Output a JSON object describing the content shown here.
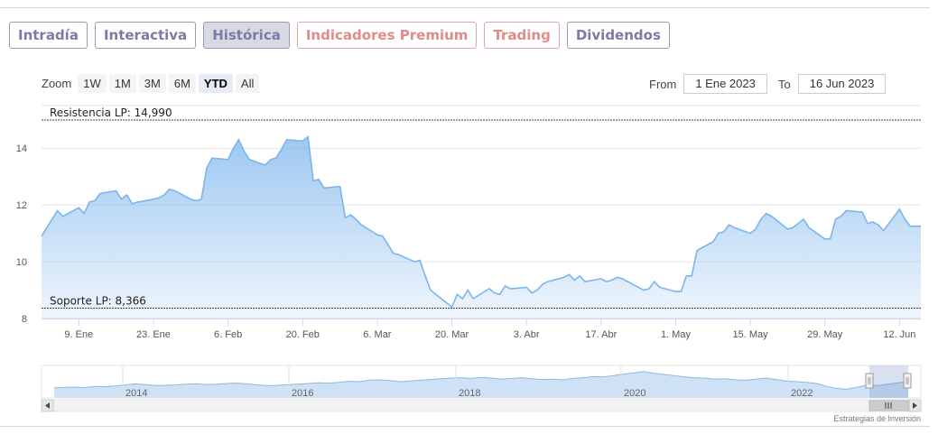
{
  "tabs": [
    {
      "label": "Intradía",
      "type": "normal"
    },
    {
      "label": "Interactiva",
      "type": "normal"
    },
    {
      "label": "Histórica",
      "type": "active"
    },
    {
      "label": "Indicadores Premium",
      "type": "premium"
    },
    {
      "label": "Trading",
      "type": "premium"
    },
    {
      "label": "Dividendos",
      "type": "normal"
    }
  ],
  "zoom": {
    "label": "Zoom",
    "buttons": [
      "1W",
      "1M",
      "3M",
      "6M",
      "YTD",
      "All"
    ],
    "selected": "YTD"
  },
  "range": {
    "from_label": "From",
    "from_value": "1 Ene 2023",
    "to_label": "To",
    "to_value": "16 Jun 2023"
  },
  "credit": "Estrategias de Inversión",
  "colors": {
    "line": "#7cb5ec",
    "fill_top": "#7cb5ec",
    "level_line": "#444444",
    "tab_text": "#7c7aa6",
    "premium_text": "#e08b8b"
  },
  "chart_data": {
    "type": "area",
    "ylim": [
      8,
      15.5
    ],
    "y_ticks": [
      8,
      10,
      12,
      14
    ],
    "grid": true,
    "x_ticks": [
      {
        "label": "9. Ene",
        "day": 9
      },
      {
        "label": "23. Ene",
        "day": 23
      },
      {
        "label": "6. Feb",
        "day": 37
      },
      {
        "label": "20. Feb",
        "day": 51
      },
      {
        "label": "6. Mar",
        "day": 65
      },
      {
        "label": "20. Mar",
        "day": 79
      },
      {
        "label": "3. Abr",
        "day": 93
      },
      {
        "label": "17. Abr",
        "day": 107
      },
      {
        "label": "1. May",
        "day": 121
      },
      {
        "label": "15. May",
        "day": 135
      },
      {
        "label": "29. May",
        "day": 149
      },
      {
        "label": "12. Jun",
        "day": 163
      }
    ],
    "x_range_days": [
      2,
      167
    ],
    "levels": [
      {
        "label": "Resistencia LP: 14,990",
        "value": 14.99
      },
      {
        "label": "Soporte LP: 8,366",
        "value": 8.366
      }
    ],
    "series": [
      {
        "days": [
          2,
          3,
          4,
          5,
          6,
          9,
          10,
          11,
          12,
          13,
          16,
          17,
          18,
          19,
          20,
          23,
          24,
          25,
          26,
          27,
          30,
          31,
          32,
          33,
          34,
          37,
          38,
          39,
          40,
          41,
          44,
          45,
          46,
          47,
          48,
          51,
          52,
          53,
          54,
          55,
          58,
          59,
          60,
          61,
          62,
          65,
          66,
          67,
          68,
          69,
          72,
          73,
          74,
          75,
          76,
          79,
          80,
          81,
          82,
          83,
          86,
          87,
          88,
          89,
          90,
          93,
          94,
          95,
          96,
          97,
          100,
          101,
          102,
          103,
          104,
          107,
          108,
          109,
          110,
          111,
          114,
          115,
          116,
          117,
          118,
          121,
          122,
          123,
          124,
          125,
          128,
          129,
          130,
          131,
          132,
          135,
          136,
          137,
          138,
          139,
          142,
          143,
          144,
          145,
          146,
          149,
          150,
          151,
          152,
          153,
          156,
          157,
          158,
          159,
          160,
          163,
          164,
          165,
          166,
          167
        ],
        "values": [
          10.9,
          11.2,
          11.5,
          11.8,
          11.6,
          11.9,
          11.7,
          12.1,
          12.15,
          12.4,
          12.5,
          12.2,
          12.35,
          12.05,
          12.1,
          12.2,
          12.25,
          12.35,
          12.55,
          12.5,
          12.2,
          12.15,
          12.2,
          13.3,
          13.65,
          13.6,
          14.0,
          14.3,
          13.9,
          13.6,
          13.4,
          13.6,
          13.65,
          13.95,
          14.3,
          14.25,
          14.4,
          12.85,
          12.9,
          12.6,
          12.65,
          11.55,
          11.65,
          11.5,
          11.3,
          10.95,
          10.9,
          10.6,
          10.3,
          10.25,
          10.0,
          10.05,
          9.5,
          9.0,
          8.85,
          8.4,
          8.85,
          8.7,
          9.0,
          8.7,
          9.05,
          8.9,
          8.85,
          9.15,
          9.05,
          9.1,
          8.9,
          9.0,
          9.2,
          9.3,
          9.45,
          9.55,
          9.35,
          9.5,
          9.3,
          9.4,
          9.3,
          9.35,
          9.45,
          9.4,
          9.1,
          9.0,
          9.05,
          9.3,
          9.1,
          8.95,
          8.95,
          9.5,
          9.5,
          10.4,
          10.7,
          11.0,
          11.05,
          11.3,
          11.2,
          11.0,
          11.15,
          11.5,
          11.7,
          11.6,
          11.15,
          11.2,
          11.35,
          11.5,
          11.2,
          10.8,
          10.8,
          11.5,
          11.6,
          11.8,
          11.75,
          11.35,
          11.4,
          11.3,
          11.1,
          11.85,
          11.5,
          11.25,
          11.25,
          11.25
        ]
      }
    ],
    "navigator": {
      "years": [
        "2014",
        "2016",
        "2018",
        "2020",
        "2022"
      ],
      "values": [
        8.8,
        8.9,
        9.0,
        8.85,
        9.2,
        9.1,
        9.3,
        9.6,
        9.9,
        9.7,
        9.4,
        9.5,
        9.6,
        9.8,
        9.9,
        9.7,
        9.8,
        10.0,
        10.1,
        9.9,
        9.6,
        9.4,
        9.5,
        9.7,
        9.8,
        10.0,
        10.2,
        10.1,
        10.3,
        10.6,
        10.5,
        10.9,
        11.0,
        10.8,
        10.5,
        10.7,
        10.9,
        11.1,
        11.3,
        11.5,
        11.6,
        11.4,
        11.7,
        11.5,
        11.2,
        11.4,
        11.6,
        11.3,
        11.1,
        11.2,
        11.0,
        11.4,
        11.6,
        11.9,
        11.8,
        12.2,
        12.6,
        12.9,
        13.3,
        12.8,
        12.5,
        12.2,
        11.8,
        11.6,
        11.5,
        11.2,
        11.3,
        11.0,
        10.9,
        11.2,
        11.5,
        11.1,
        10.7,
        10.5,
        10.3,
        10.0,
        9.2,
        8.6,
        8.4,
        9.0,
        9.6,
        9.4,
        9.8,
        10.2,
        10.5
      ],
      "ylim": [
        6,
        15
      ]
    }
  }
}
